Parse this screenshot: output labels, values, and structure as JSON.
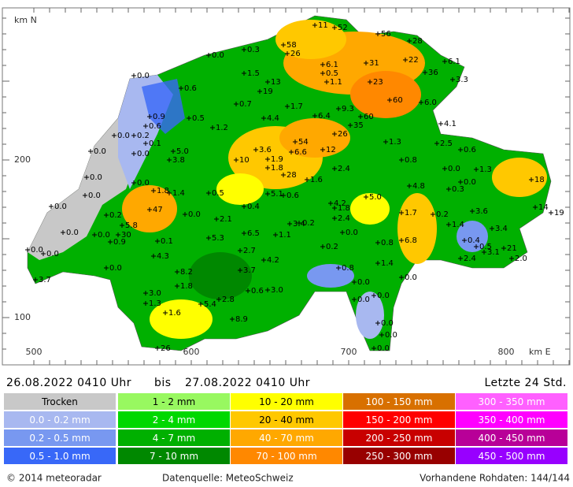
{
  "map": {
    "y_axis_title": "km N",
    "x_axis_title": "km E",
    "y_labels": [
      "200",
      "100"
    ],
    "x_labels": [
      "500",
      "600",
      "700",
      "800"
    ],
    "station_labels": [
      "11",
      "52",
      "56",
      "28",
      "58",
      "26",
      "0.3",
      "0.0",
      "6.1",
      "31",
      "22",
      "6.1",
      "36",
      "3.3",
      "0.0",
      "1.5",
      "0.5",
      "13",
      "23",
      "0.6",
      "19",
      "1.1",
      "60",
      "6.0",
      "0.7",
      "1.7",
      "9.3",
      "60",
      "0.9",
      "0.5",
      "4.4",
      "6.4",
      "35",
      "4.1",
      "0.6",
      "1.2",
      "26",
      "0.0",
      "0.2",
      "0.1",
      "1.3",
      "2.5",
      "0.6",
      "54",
      "3.6",
      "0.0",
      "0.0",
      "5.0",
      "6.6",
      "12",
      "3.8",
      "10",
      "1.9",
      "0.8",
      "0.0",
      "1.8",
      "2.4",
      "1.3",
      "0.0",
      "28",
      "1.6",
      "0.0",
      "18",
      "0.0",
      "0.5",
      "4.8",
      "1.8",
      "1.4",
      "0.3",
      "0.0",
      "5.1",
      "0.6",
      "5.0",
      "4.2",
      "0.0",
      "0.4",
      "1.8",
      "0.0",
      "47",
      "0.2",
      "2.1",
      "2.4",
      "1.7",
      "0.2",
      "3.6",
      "14",
      "19",
      "0.2",
      "3.4",
      "1.4",
      "3.4",
      "5.8",
      "0.0",
      "0.0",
      "30",
      "6.5",
      "0.0",
      "1.1",
      "0.9",
      "0.1",
      "5.3",
      "0.8",
      "6.8",
      "0.4",
      "0.5",
      "3.1",
      "21",
      "0.0",
      "0.0",
      "0.2",
      "2.7",
      "4.3",
      "4.2",
      "2.4",
      "2.0",
      "1.4",
      "0.0",
      "0.8",
      "8.2",
      "3.7",
      "0.0",
      "3.7",
      "0.0",
      "0.0",
      "1.8",
      "3.0",
      "0.6",
      "3.0",
      "0.0",
      "2.8",
      "5.4",
      "1.3",
      "1.6",
      "8.9",
      "0.0",
      "0.0",
      "0.0",
      "26"
    ]
  },
  "header": {
    "from": "26.08.2022 0410 Uhr",
    "bis": "bis",
    "to": "27.08.2022 0410 Uhr",
    "period": "Letzte 24 Std."
  },
  "legend": {
    "columns": [
      [
        {
          "label": "Trocken",
          "color": "#c8c8c8",
          "text": "#000"
        },
        {
          "label": "0.0 - 0.2 mm",
          "color": "#a8b8f0",
          "text": "#fff"
        },
        {
          "label": "0.2 - 0.5 mm",
          "color": "#7898f0",
          "text": "#fff"
        },
        {
          "label": "0.5 - 1.0 mm",
          "color": "#3868f8",
          "text": "#fff"
        }
      ],
      [
        {
          "label": "1 - 2 mm",
          "color": "#98f860",
          "text": "#000"
        },
        {
          "label": "2 - 4 mm",
          "color": "#00d800",
          "text": "#fff"
        },
        {
          "label": "4 - 7 mm",
          "color": "#00b000",
          "text": "#fff"
        },
        {
          "label": "7 - 10 mm",
          "color": "#008800",
          "text": "#fff"
        }
      ],
      [
        {
          "label": "10 - 20 mm",
          "color": "#ffff00",
          "text": "#000"
        },
        {
          "label": "20 - 40 mm",
          "color": "#ffc800",
          "text": "#000"
        },
        {
          "label": "40 - 70 mm",
          "color": "#ffa800",
          "text": "#fff"
        },
        {
          "label": "70 - 100 mm",
          "color": "#ff8800",
          "text": "#fff"
        }
      ],
      [
        {
          "label": "100 - 150 mm",
          "color": "#d87000",
          "text": "#fff"
        },
        {
          "label": "150 - 200 mm",
          "color": "#ff0000",
          "text": "#fff"
        },
        {
          "label": "200 - 250 mm",
          "color": "#c80000",
          "text": "#fff"
        },
        {
          "label": "250 - 300 mm",
          "color": "#980000",
          "text": "#fff"
        }
      ],
      [
        {
          "label": "300 - 350 mm",
          "color": "#ff60ff",
          "text": "#fff"
        },
        {
          "label": "350 - 400 mm",
          "color": "#ff00ff",
          "text": "#fff"
        },
        {
          "label": "400 - 450 mm",
          "color": "#b80098",
          "text": "#fff"
        },
        {
          "label": "450 - 500 mm",
          "color": "#9800ff",
          "text": "#fff"
        }
      ]
    ]
  },
  "footer": {
    "copyright": "© 2014 meteoradar",
    "source": "Datenquelle: MeteoSchweiz",
    "raw": "Vorhandene Rohdaten: 144/144"
  }
}
